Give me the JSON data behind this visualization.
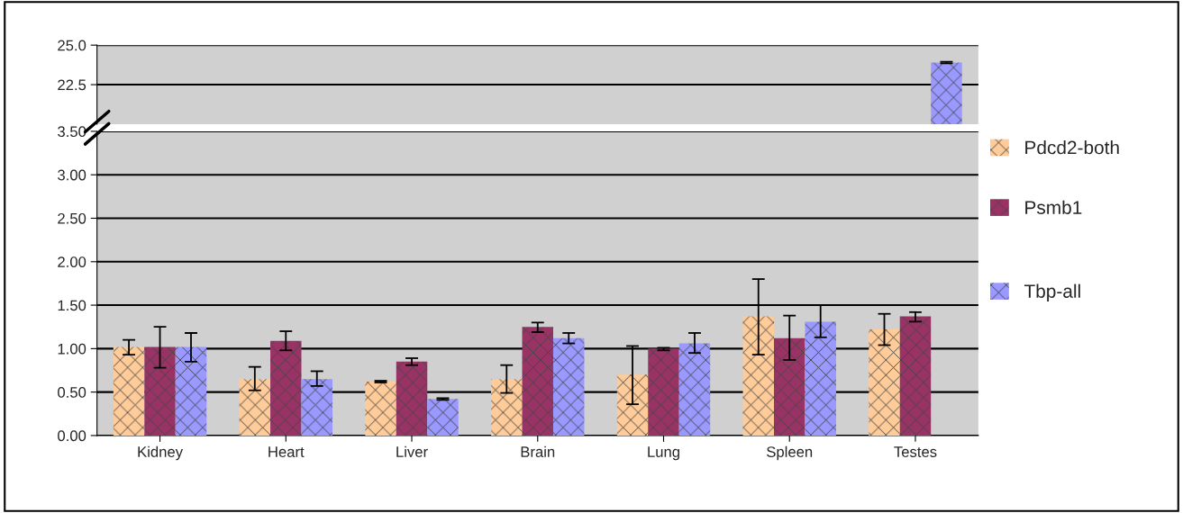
{
  "chart_data": [
    {
      "type": "bar",
      "categories": [
        null,
        null,
        null,
        null,
        null,
        null,
        null
      ],
      "series": [
        {
          "name": "Tbp-all",
          "color": "#9999ff",
          "values": [
            null,
            null,
            null,
            null,
            null,
            null,
            23.9
          ],
          "errors": [
            null,
            null,
            null,
            null,
            null,
            null,
            [
              23.85,
              23.95
            ]
          ]
        }
      ],
      "ylim": [
        20.0,
        25.0
      ],
      "yticks": [
        {
          "value": 22.5,
          "label": "22.5"
        },
        {
          "value": 25.0,
          "label": "25.0"
        }
      ],
      "tick_labels": "y",
      "grid": "y",
      "legend": "right"
    },
    {
      "type": "bar",
      "categories": [
        "Kidney",
        "Heart",
        "Liver",
        "Brain",
        "Lung",
        "Spleen",
        "Testes"
      ],
      "series": [
        {
          "name": "Pdcd2-both",
          "color": "#ffcc99",
          "values": [
            1.02,
            0.65,
            0.62,
            0.65,
            0.7,
            1.37,
            1.22
          ],
          "errors": [
            [
              0.93,
              1.1
            ],
            [
              0.52,
              0.79
            ],
            [
              0.61,
              0.63
            ],
            [
              0.49,
              0.81
            ],
            [
              0.36,
              1.03
            ],
            [
              0.93,
              1.8
            ],
            [
              1.04,
              1.4
            ]
          ]
        },
        {
          "name": "Psmb1",
          "color": "#993366",
          "values": [
            1.02,
            1.09,
            0.85,
            1.25,
            1.0,
            1.12,
            1.37
          ],
          "errors": [
            [
              0.78,
              1.25
            ],
            [
              0.98,
              1.2
            ],
            [
              0.81,
              0.89
            ],
            [
              1.19,
              1.3
            ],
            [
              0.98,
              1.01
            ],
            [
              0.87,
              1.38
            ],
            [
              1.31,
              1.42
            ]
          ]
        },
        {
          "name": "Tbp-all",
          "color": "#9999ff",
          "values": [
            1.02,
            0.65,
            0.42,
            1.12,
            1.06,
            1.31,
            null
          ],
          "errors": [
            [
              0.85,
              1.18
            ],
            [
              0.57,
              0.74
            ],
            [
              0.41,
              0.43
            ],
            [
              1.06,
              1.18
            ],
            [
              0.95,
              1.18
            ],
            [
              1.13,
              1.5
            ],
            null
          ]
        }
      ],
      "ylim": [
        0,
        3.5
      ],
      "yticks": [
        {
          "value": 0,
          "label": "0.00"
        },
        {
          "value": 0.5,
          "label": "0.50"
        },
        {
          "value": 1.0,
          "label": "1.00"
        },
        {
          "value": 1.5,
          "label": "1.50"
        },
        {
          "value": 2.0,
          "label": "2.00"
        },
        {
          "value": 2.5,
          "label": "2.50"
        },
        {
          "value": 3.0,
          "label": "3.00"
        },
        {
          "value": 3.5,
          "label": "3.50"
        }
      ],
      "grid": "y",
      "legend": "right"
    }
  ]
}
